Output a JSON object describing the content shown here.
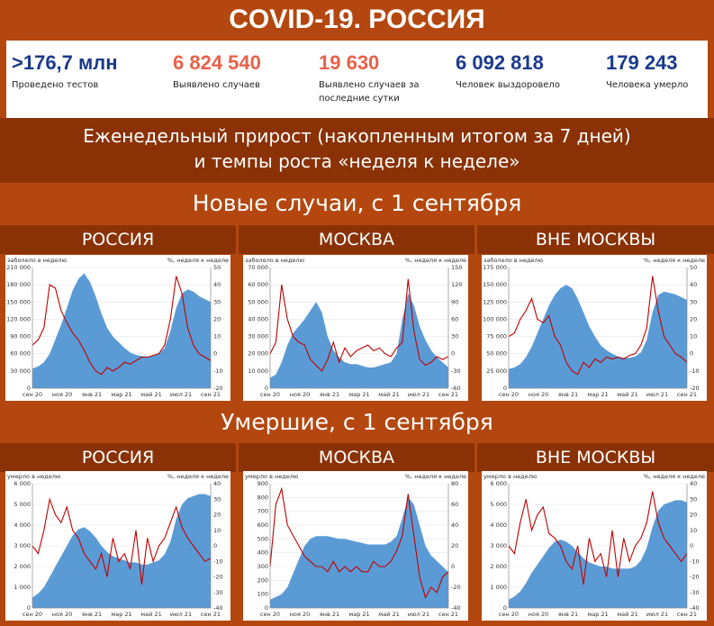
{
  "header": {
    "title": "COVID-19. РОССИЯ"
  },
  "stats": [
    {
      "value": ">176,7 млн",
      "label": "Проведено тестов",
      "color": "#1b3a8c"
    },
    {
      "value": "6 824 540",
      "label": "Выявлено случаев",
      "color": "#e8614a"
    },
    {
      "value": "19 630",
      "label": "Выявлено случаев за последние сутки",
      "color": "#e8614a"
    },
    {
      "value": "6 092 818",
      "label": "Человек выздоровело",
      "color": "#1b3a8c"
    },
    {
      "value": "179 243",
      "label": "Человека умерло",
      "color": "#1b3a8c"
    }
  ],
  "subtitle": {
    "line1": "Еженедельный прирост (накопленным итогом за 7 дней)",
    "line2": "и темпы роста «неделя к неделе»"
  },
  "sections": {
    "cases": "Новые случаи, с 1 сентября",
    "deaths": "Умершие, с 1 сентября"
  },
  "regions": {
    "russia": "РОССИЯ",
    "moscow": "МОСКВА",
    "outside": "ВНЕ МОСКВЫ"
  },
  "colors": {
    "area": "#5b9bd5",
    "line": "#c00000",
    "band": "#b3470f",
    "band_dark": "#8a3206"
  },
  "chart_data": [
    {
      "type": "area",
      "id": "cases-russia",
      "ylabel": "заболело в неделю",
      "y2label": "%, неделя к неделе",
      "x_ticks": [
        "сен 20",
        "ноя 20",
        "янв 21",
        "мар 21",
        "май 21",
        "июл 21",
        "сен 21"
      ],
      "ylim": [
        0,
        210000
      ],
      "y_ticks": [
        "0",
        "30 000",
        "60 000",
        "90 000",
        "120 000",
        "150 000",
        "180 000",
        "210 000"
      ],
      "y2lim": [
        -20,
        50
      ],
      "y2_ticks": [
        "-20",
        "-10",
        "0",
        "10",
        "20",
        "30",
        "40",
        "50"
      ],
      "series": [
        {
          "kind": "area",
          "values": [
            34000,
            38000,
            45000,
            60000,
            85000,
            110000,
            140000,
            170000,
            190000,
            200000,
            185000,
            160000,
            130000,
            105000,
            90000,
            80000,
            70000,
            62000,
            58000,
            56000,
            55000,
            57000,
            60000,
            70000,
            100000,
            140000,
            165000,
            172000,
            168000,
            160000,
            155000,
            150000
          ]
        },
        {
          "kind": "line",
          "values": [
            5,
            8,
            15,
            40,
            38,
            25,
            18,
            12,
            8,
            2,
            -5,
            -10,
            -12,
            -8,
            -10,
            -8,
            -5,
            -6,
            -4,
            -2,
            -2,
            -1,
            0,
            5,
            20,
            45,
            35,
            15,
            5,
            0,
            -2,
            -4
          ]
        }
      ]
    },
    {
      "type": "area",
      "id": "cases-moscow",
      "ylabel": "заболело в неделю",
      "y2label": "%, неделя к неделе",
      "x_ticks": [
        "сен 20",
        "ноя 20",
        "янв 21",
        "мар 21",
        "май 21",
        "июл 21",
        "сен 21"
      ],
      "ylim": [
        0,
        70000
      ],
      "y_ticks": [
        "0",
        "10 000",
        "20 000",
        "30 000",
        "40 000",
        "50 000",
        "60 000",
        "70 000"
      ],
      "y2lim": [
        -60,
        150
      ],
      "y2_ticks": [
        "-60",
        "-30",
        "0",
        "30",
        "60",
        "90",
        "120",
        "150"
      ],
      "series": [
        {
          "kind": "area",
          "values": [
            6000,
            8000,
            15000,
            25000,
            32000,
            36000,
            40000,
            45000,
            50000,
            44000,
            30000,
            22000,
            18000,
            15000,
            14000,
            14000,
            13000,
            12000,
            12000,
            13000,
            14000,
            15000,
            20000,
            40000,
            55000,
            48000,
            36000,
            28000,
            22000,
            18000,
            15000,
            12000
          ]
        },
        {
          "kind": "line",
          "values": [
            0,
            20,
            120,
            60,
            30,
            20,
            15,
            -10,
            -20,
            -30,
            -10,
            20,
            -15,
            10,
            -5,
            5,
            10,
            15,
            5,
            10,
            0,
            -5,
            10,
            20,
            130,
            40,
            -10,
            -20,
            -15,
            -5,
            -10,
            -5
          ]
        }
      ]
    },
    {
      "type": "area",
      "id": "cases-outside",
      "ylabel": "заболело в неделю",
      "y2label": "%, неделя к неделе",
      "x_ticks": [
        "сен 20",
        "ноя 20",
        "янв 21",
        "мар 21",
        "май 21",
        "июл 21",
        "сен 21"
      ],
      "ylim": [
        0,
        175000
      ],
      "y_ticks": [
        "0",
        "25 000",
        "50 000",
        "75 000",
        "100 000",
        "125 000",
        "150 000",
        "175 000"
      ],
      "y2lim": [
        -20,
        50
      ],
      "y2_ticks": [
        "-20",
        "-10",
        "0",
        "10",
        "20",
        "30",
        "40",
        "50"
      ],
      "series": [
        {
          "kind": "area",
          "values": [
            28000,
            30000,
            35000,
            45000,
            60000,
            80000,
            100000,
            120000,
            135000,
            145000,
            150000,
            145000,
            130000,
            110000,
            90000,
            75000,
            62000,
            55000,
            50000,
            46000,
            44000,
            44000,
            46000,
            52000,
            70000,
            110000,
            135000,
            140000,
            138000,
            136000,
            132000,
            128000
          ]
        },
        {
          "kind": "line",
          "values": [
            10,
            12,
            20,
            25,
            32,
            20,
            18,
            22,
            10,
            5,
            -5,
            -10,
            -12,
            -5,
            -8,
            -3,
            -5,
            -2,
            -3,
            -2,
            -3,
            -1,
            0,
            5,
            15,
            45,
            25,
            10,
            5,
            0,
            -2,
            -5
          ]
        }
      ]
    },
    {
      "type": "area",
      "id": "deaths-russia",
      "ylabel": "умерло в неделю",
      "y2label": "%, неделя к неделе",
      "x_ticks": [
        "сен 20",
        "ноя 20",
        "янв 21",
        "мар 21",
        "май 21",
        "июл 21",
        "сен 21"
      ],
      "ylim": [
        0,
        6000
      ],
      "y_ticks": [
        "0",
        "1 000",
        "2 000",
        "3 000",
        "4 000",
        "5 000",
        "6 000"
      ],
      "y2lim": [
        -40,
        40
      ],
      "y2_ticks": [
        "-40",
        "-30",
        "-20",
        "-10",
        "0",
        "10",
        "20",
        "30",
        "40"
      ],
      "series": [
        {
          "kind": "area",
          "values": [
            500,
            700,
            1000,
            1500,
            2000,
            2500,
            3000,
            3500,
            3800,
            3900,
            3700,
            3400,
            3000,
            2700,
            2500,
            2400,
            2300,
            2200,
            2200,
            2100,
            2100,
            2200,
            2300,
            2600,
            3200,
            4300,
            5000,
            5300,
            5400,
            5500,
            5500,
            5400
          ]
        },
        {
          "kind": "line",
          "values": [
            0,
            -5,
            10,
            30,
            20,
            15,
            25,
            10,
            5,
            -5,
            -10,
            -15,
            -5,
            -20,
            5,
            -10,
            -5,
            -15,
            10,
            -25,
            5,
            -10,
            0,
            5,
            15,
            25,
            12,
            5,
            0,
            -5,
            -10,
            -8
          ]
        }
      ]
    },
    {
      "type": "area",
      "id": "deaths-moscow",
      "ylabel": "умерло в неделю",
      "y2label": "%, неделя к неделе",
      "x_ticks": [
        "сен 20",
        "ноя 20",
        "янв 21",
        "мар 21",
        "май 21",
        "июл 21",
        "сен 21"
      ],
      "ylim": [
        0,
        900
      ],
      "y_ticks": [
        "0",
        "100",
        "200",
        "300",
        "400",
        "500",
        "600",
        "700",
        "800",
        "900"
      ],
      "y2lim": [
        -40,
        80
      ],
      "y2_ticks": [
        "-40",
        "-20",
        "0",
        "20",
        "40",
        "60",
        "80"
      ],
      "series": [
        {
          "kind": "area",
          "values": [
            60,
            80,
            100,
            150,
            250,
            350,
            450,
            500,
            520,
            520,
            520,
            510,
            500,
            500,
            490,
            480,
            470,
            460,
            460,
            460,
            460,
            480,
            520,
            650,
            800,
            750,
            600,
            450,
            380,
            340,
            300,
            260
          ]
        },
        {
          "kind": "line",
          "values": [
            0,
            60,
            75,
            40,
            30,
            20,
            10,
            5,
            0,
            0,
            -5,
            5,
            -5,
            0,
            -5,
            0,
            -5,
            -5,
            5,
            0,
            0,
            5,
            15,
            30,
            70,
            30,
            -10,
            -30,
            -20,
            -25,
            -10,
            -5
          ]
        }
      ]
    },
    {
      "type": "area",
      "id": "deaths-outside",
      "ylabel": "умерло в неделю",
      "y2label": "%, неделя к неделе",
      "x_ticks": [
        "сен 20",
        "ноя 20",
        "янв 21",
        "мар 21",
        "май 21",
        "июл 21",
        "сен 21"
      ],
      "ylim": [
        0,
        6000
      ],
      "y_ticks": [
        "0",
        "1 000",
        "2 000",
        "3 000",
        "4 000",
        "5 000",
        "6 000"
      ],
      "y2lim": [
        -40,
        40
      ],
      "y2_ticks": [
        "-40",
        "-30",
        "-20",
        "-10",
        "0",
        "10",
        "20",
        "30",
        "40"
      ],
      "series": [
        {
          "kind": "area",
          "values": [
            400,
            550,
            800,
            1200,
            1700,
            2100,
            2500,
            2900,
            3200,
            3300,
            3200,
            3000,
            2700,
            2400,
            2200,
            2100,
            2000,
            2000,
            1900,
            1900,
            1900,
            1900,
            2000,
            2300,
            2900,
            3900,
            4700,
            5000,
            5100,
            5200,
            5200,
            5100
          ]
        },
        {
          "kind": "line",
          "values": [
            0,
            -5,
            15,
            30,
            10,
            20,
            25,
            8,
            5,
            0,
            -10,
            -15,
            0,
            -25,
            5,
            -10,
            -5,
            -20,
            10,
            -20,
            5,
            -10,
            0,
            5,
            15,
            35,
            15,
            5,
            0,
            -5,
            -10,
            -5
          ]
        }
      ]
    }
  ]
}
